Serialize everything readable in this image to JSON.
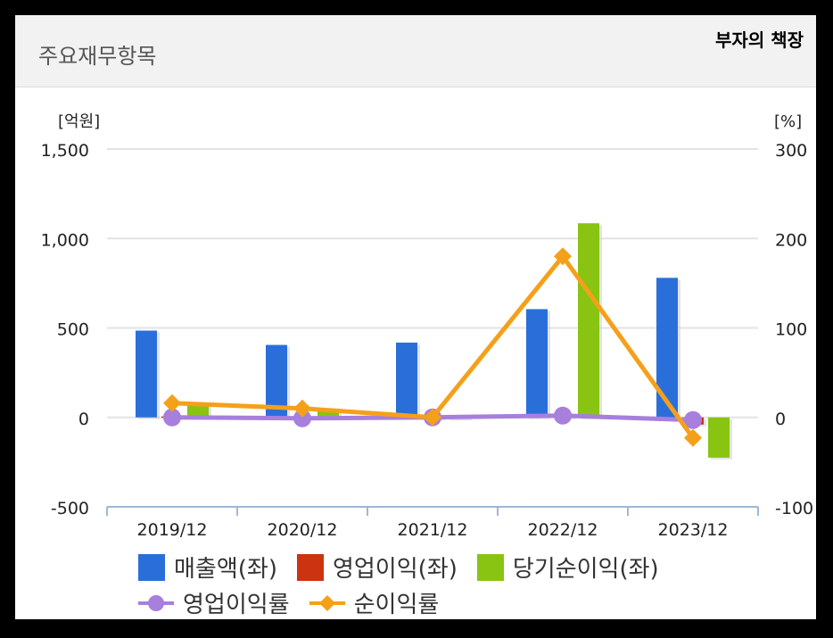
{
  "header": {
    "title": "주요재무항목",
    "badge": "부자의 책장"
  },
  "colors": {
    "sales": "#2a6fd9",
    "op_income": "#cc3311",
    "net_income": "#88c411",
    "op_margin": "#a77fdd",
    "net_margin": "#f5a01a"
  },
  "chart_data": {
    "type": "bar",
    "categories": [
      "2019/12",
      "2020/12",
      "2021/12",
      "2022/12",
      "2023/12"
    ],
    "left_unit": "[억원]",
    "right_unit": "[%]",
    "left_ticks": [
      "1,500",
      "1,000",
      "500",
      "0",
      "-500"
    ],
    "right_ticks": [
      "300",
      "200",
      "100",
      "0",
      "-100"
    ],
    "left_range": [
      -500,
      1500
    ],
    "right_range": [
      -100,
      300
    ],
    "series": [
      {
        "name": "매출액(좌)",
        "kind": "bar",
        "axis": "left",
        "values": [
          485,
          405,
          418,
          605,
          780
        ]
      },
      {
        "name": "영업이익(좌)",
        "kind": "bar",
        "axis": "left",
        "values": [
          5,
          2,
          -2,
          12,
          -40
        ]
      },
      {
        "name": "당기순이익(좌)",
        "kind": "bar",
        "axis": "left",
        "values": [
          70,
          35,
          -5,
          1085,
          -225
        ]
      },
      {
        "name": "영업이익률",
        "kind": "line",
        "axis": "right",
        "values": [
          0,
          -1,
          0,
          2,
          -3
        ]
      },
      {
        "name": "순이익률",
        "kind": "line",
        "axis": "right",
        "values": [
          16,
          10,
          0,
          180,
          -23
        ]
      }
    ]
  }
}
